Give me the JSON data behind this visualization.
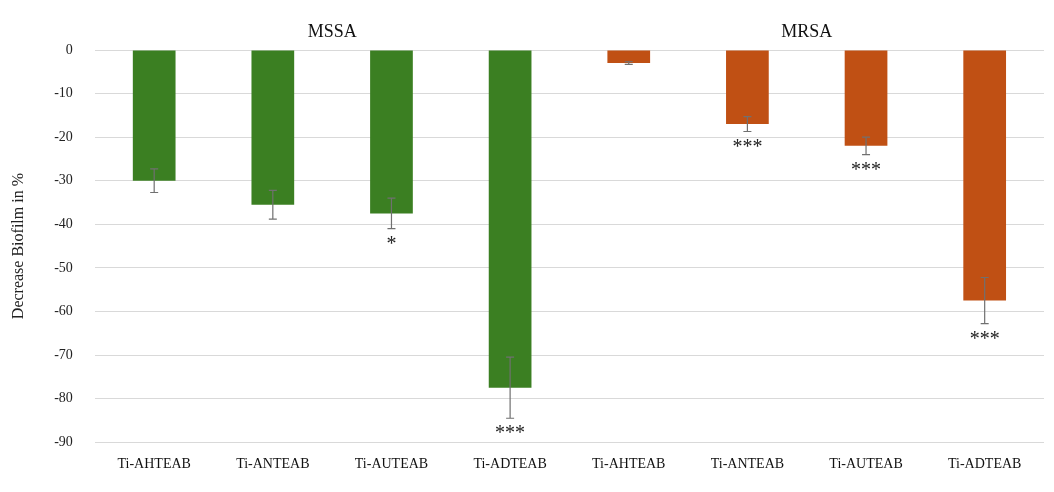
{
  "chart_data": {
    "type": "bar",
    "ylabel": "Decrease Biofilm in %",
    "categories": [
      "Ti-AHTEAB",
      "Ti-ANTEAB",
      "Ti-AUTEAB",
      "Ti-ADTEAB",
      "Ti-AHTEAB",
      "Ti-ANTEAB",
      "Ti-AUTEAB",
      "Ti-ADTEAB"
    ],
    "values": [
      -30,
      -35.5,
      -37.5,
      -77.5,
      -3,
      -17,
      -22,
      -57.5
    ],
    "errors": [
      2.7,
      3.3,
      3.5,
      7,
      0.3,
      1.7,
      2,
      5.3
    ],
    "colors": [
      "#3b7f22",
      "#3b7f22",
      "#3b7f22",
      "#3b7f22",
      "#c05014",
      "#c05014",
      "#c05014",
      "#c05014"
    ],
    "value_labels": [
      null,
      null,
      "*",
      "***",
      null,
      "***",
      "***",
      "***"
    ],
    "annotations": [
      "MSSA",
      "MRSA"
    ],
    "ylim": [
      -90,
      0
    ],
    "yticks": [
      0,
      -10,
      -20,
      -30,
      -40,
      -50,
      -60,
      -70,
      -80,
      -90
    ],
    "grid": "y",
    "legend": false
  }
}
